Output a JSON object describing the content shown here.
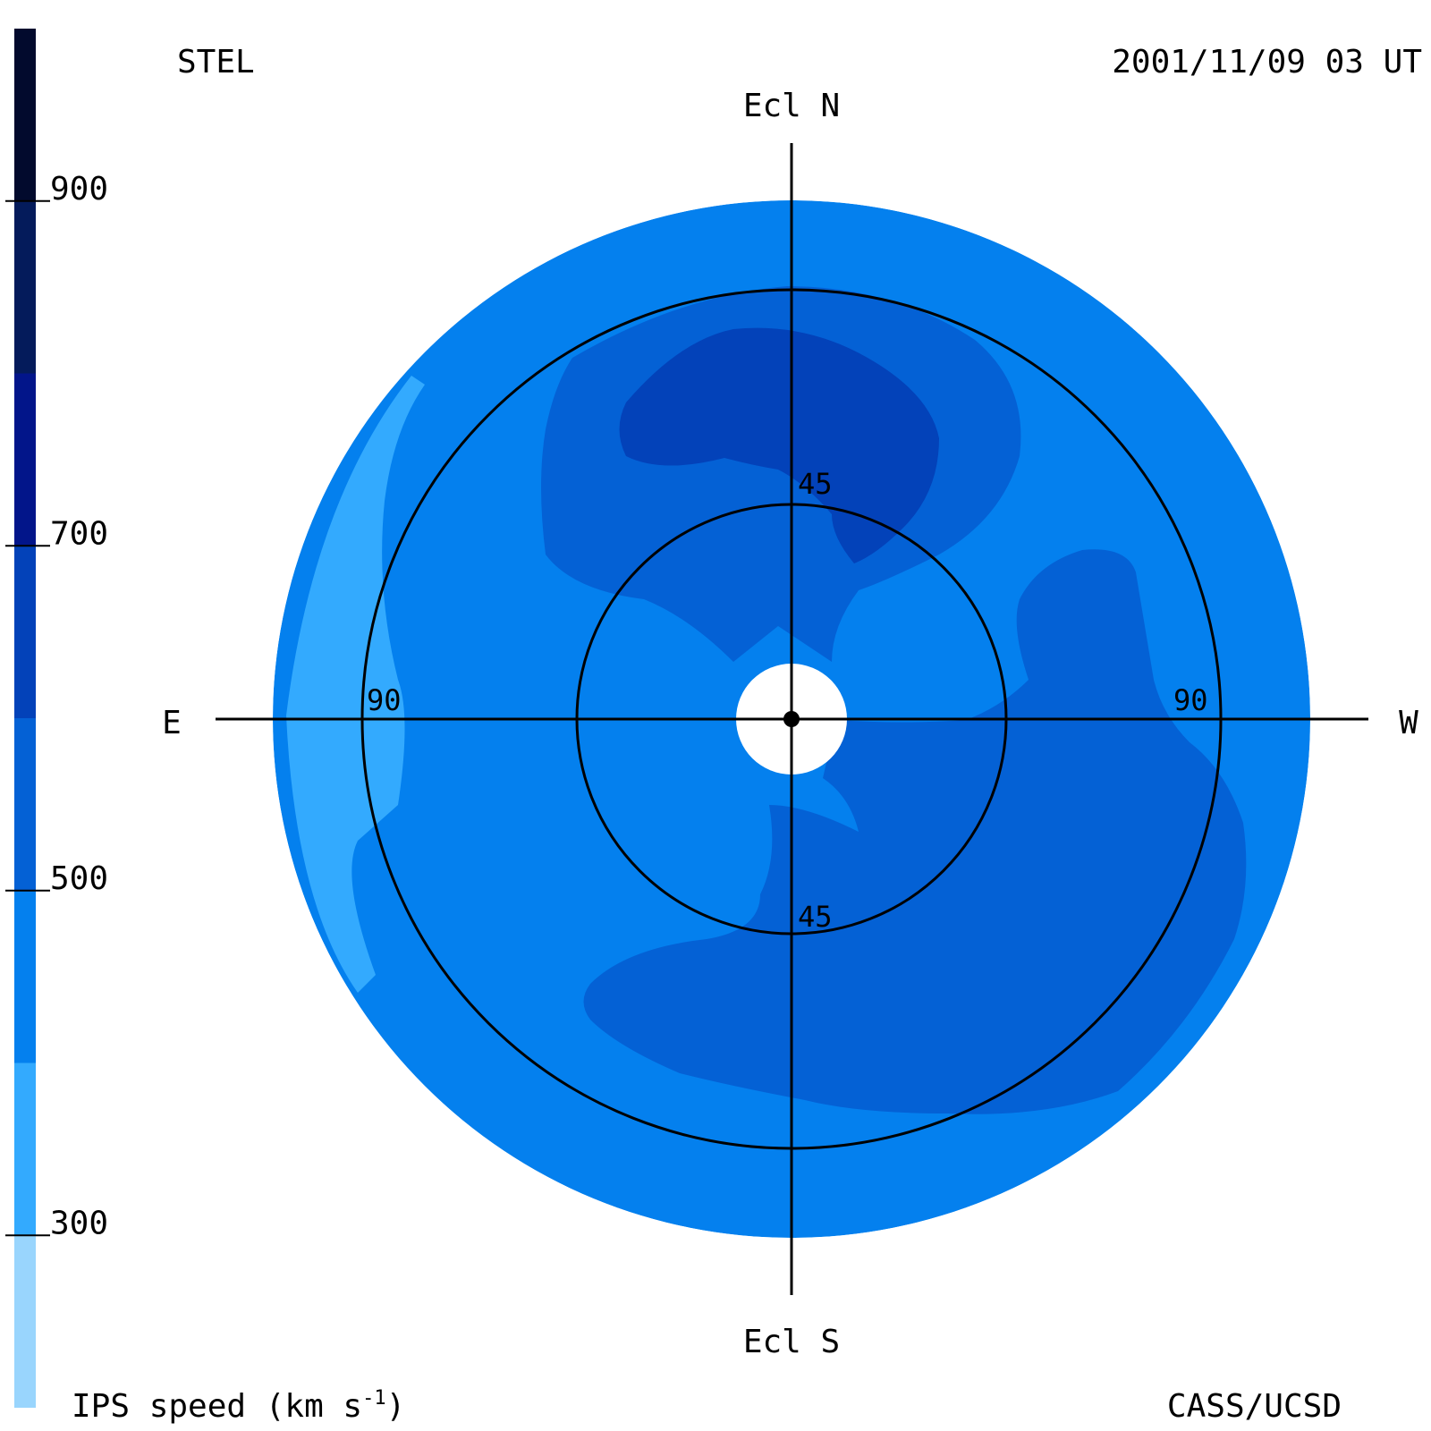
{
  "header": {
    "observatory": "STEL",
    "timestamp": "2001/11/09 03 UT"
  },
  "footer": {
    "colorbar_label_prefix": "IPS speed (km s",
    "colorbar_label_exp": "-1",
    "colorbar_label_suffix": ")",
    "credit": "CASS/UCSD"
  },
  "chart_data": {
    "type": "heatmap",
    "projection": "polar sky map centered on Sun",
    "title": "",
    "direction_labels": {
      "north": "Ecl N",
      "south": "Ecl S",
      "east": "E",
      "west": "W"
    },
    "ring_labels": {
      "inner_top": "45",
      "inner_bottom": "45",
      "outer_left": "90",
      "outer_right": "90"
    },
    "rings_elongation_deg": [
      45,
      90
    ],
    "colorbar": {
      "ticks": [
        {
          "value": 300,
          "label": "300"
        },
        {
          "value": 500,
          "label": "500"
        },
        {
          "value": 700,
          "label": "700"
        },
        {
          "value": 900,
          "label": "900"
        }
      ],
      "range": [
        200,
        1000
      ],
      "bands": [
        {
          "from": 200,
          "to": 300,
          "color": "#99d5fd"
        },
        {
          "from": 300,
          "to": 400,
          "color": "#33aafe"
        },
        {
          "from": 400,
          "to": 500,
          "color": "#0480ee"
        },
        {
          "from": 500,
          "to": 600,
          "color": "#0461d5"
        },
        {
          "from": 600,
          "to": 700,
          "color": "#0342b9"
        },
        {
          "from": 700,
          "to": 800,
          "color": "#02158a"
        },
        {
          "from": 800,
          "to": 900,
          "color": "#041b5b"
        },
        {
          "from": 900,
          "to": 1000,
          "color": "#020a2d"
        }
      ]
    },
    "regions": [
      {
        "name": "background",
        "speed_range": [
          400,
          500
        ],
        "color": "#0480ee"
      },
      {
        "name": "outer-east-rim",
        "speed_range": [
          300,
          400
        ],
        "color": "#33aafe"
      },
      {
        "name": "north-medium",
        "speed_range": [
          500,
          600
        ],
        "color": "#0461d5"
      },
      {
        "name": "north-fast-core",
        "speed_range": [
          600,
          700
        ],
        "color": "#0342b9"
      },
      {
        "name": "southwest-medium",
        "speed_range": [
          500,
          600
        ],
        "color": "#0461d5"
      },
      {
        "name": "east-medium-lobe",
        "speed_range": [
          500,
          600
        ],
        "color": "#0461d5"
      }
    ]
  }
}
